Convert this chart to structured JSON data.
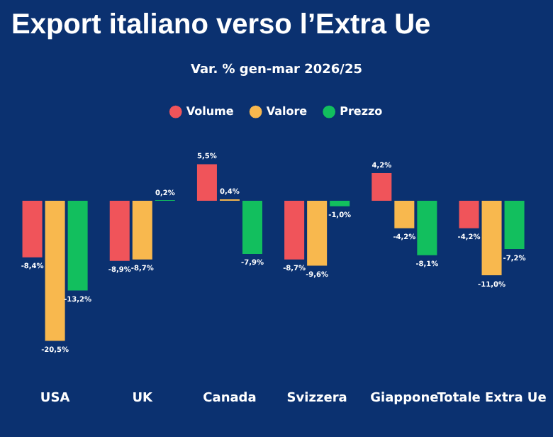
{
  "chart_data": {
    "type": "bar",
    "title": "Export italiano verso l’Extra Ue",
    "subtitle": "Var. % gen-mar 2026/25",
    "categories": [
      "USA",
      "UK",
      "Canada",
      "Svizzera",
      "Giappone",
      "Totale Extra Ue"
    ],
    "series": [
      {
        "name": "Volume",
        "color": "#f0545a",
        "values": [
          -8.4,
          -8.9,
          5.5,
          -8.7,
          4.2,
          -4.2
        ],
        "value_labels": [
          "-8,4%",
          "-8,9%",
          "5,5%",
          "-8,7%",
          "4,2%",
          "-4,2%"
        ]
      },
      {
        "name": "Valore",
        "color": "#f8b84e",
        "values": [
          -20.5,
          -8.7,
          0.4,
          -9.6,
          -4.2,
          -11.0
        ],
        "value_labels": [
          "-20,5%",
          "-8,7%",
          "0,4%",
          "-9,6%",
          "-4,2%",
          "-11,0%"
        ]
      },
      {
        "name": "Prezzo",
        "color": "#12bf5e",
        "values": [
          -13.2,
          0.2,
          -7.9,
          -1.0,
          -8.1,
          -7.2
        ],
        "value_labels": [
          "-13,2%",
          "0,2%",
          "-7,9%",
          "-1,0%",
          "-8,1%",
          "-7,2%"
        ]
      }
    ],
    "tick_labels": "x",
    "grid": false,
    "legend": "top"
  }
}
